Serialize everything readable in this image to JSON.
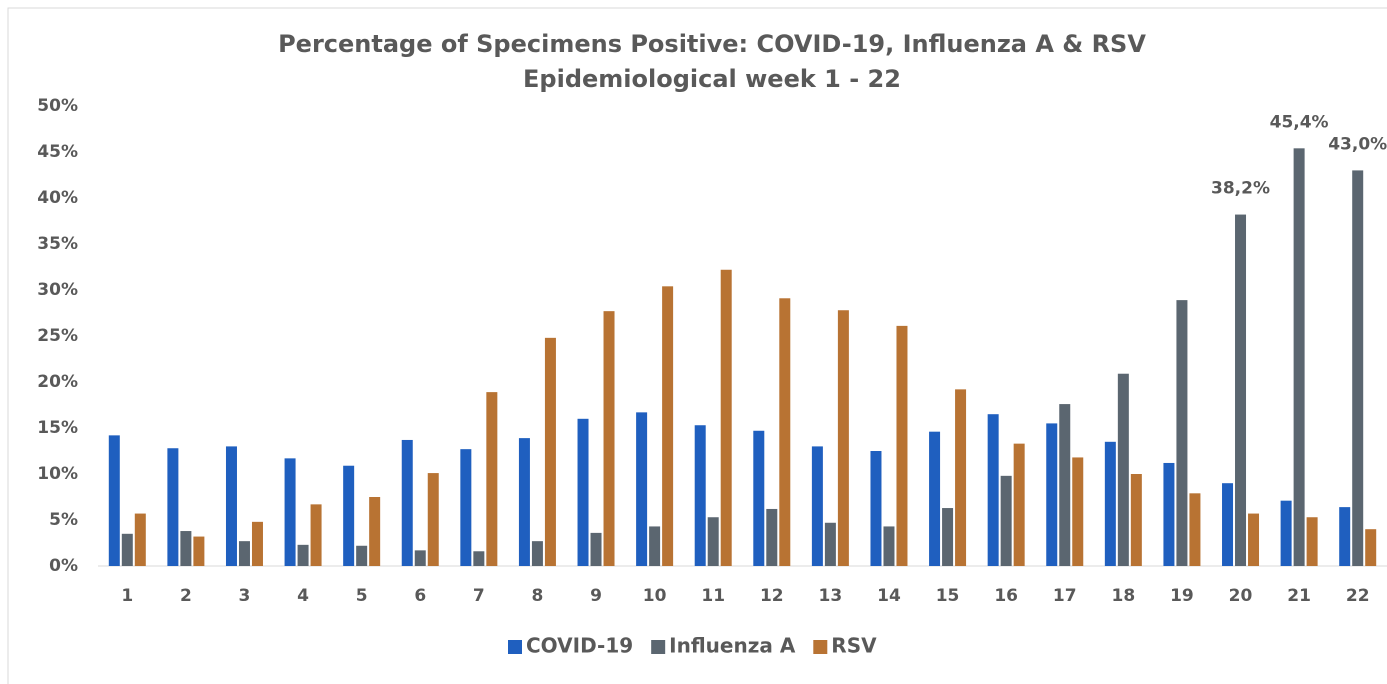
{
  "chart_data": {
    "type": "bar",
    "title": "Percentage of Specimens Positive: COVID-19, Influenza A & RSV",
    "subtitle": "Epidemiological week 1 - 22",
    "categories": [
      "1",
      "2",
      "3",
      "4",
      "5",
      "6",
      "7",
      "8",
      "9",
      "10",
      "11",
      "12",
      "13",
      "14",
      "15",
      "16",
      "17",
      "18",
      "19",
      "20",
      "21",
      "22"
    ],
    "series": [
      {
        "name": "COVID-19",
        "color": "#1f5fbf",
        "values": [
          14.2,
          12.8,
          13.0,
          11.7,
          10.9,
          13.7,
          12.7,
          13.9,
          16.0,
          16.7,
          15.3,
          14.7,
          13.0,
          12.5,
          14.6,
          16.5,
          15.5,
          13.5,
          11.2,
          9.0,
          7.1,
          6.4
        ]
      },
      {
        "name": "Influenza A",
        "color": "#5b6670",
        "values": [
          3.5,
          3.8,
          2.7,
          2.3,
          2.2,
          1.7,
          1.6,
          2.7,
          3.6,
          4.3,
          5.3,
          6.2,
          4.7,
          4.3,
          6.3,
          9.8,
          17.6,
          20.9,
          28.9,
          38.2,
          45.4,
          43.0
        ],
        "value_labels": [
          null,
          null,
          null,
          null,
          null,
          null,
          null,
          null,
          null,
          null,
          null,
          null,
          null,
          null,
          null,
          null,
          null,
          null,
          null,
          "38,2%",
          "45,4%",
          "43,0%"
        ]
      },
      {
        "name": "RSV",
        "color": "#b87333",
        "values": [
          5.7,
          3.2,
          4.8,
          6.7,
          7.5,
          10.1,
          18.9,
          24.8,
          27.7,
          30.4,
          32.2,
          29.1,
          27.8,
          26.1,
          19.2,
          13.3,
          11.8,
          10.0,
          7.9,
          5.7,
          5.3,
          4.0
        ]
      }
    ],
    "ylim": [
      0,
      50
    ],
    "yticks": [
      {
        "value": 0,
        "label": "0%"
      },
      {
        "value": 5,
        "label": "5%"
      },
      {
        "value": 10,
        "label": "10%"
      },
      {
        "value": 15,
        "label": "15%"
      },
      {
        "value": 20,
        "label": "20%"
      },
      {
        "value": 25,
        "label": "25%"
      },
      {
        "value": 30,
        "label": "30%"
      },
      {
        "value": 35,
        "label": "35%"
      },
      {
        "value": 40,
        "label": "40%"
      },
      {
        "value": 45,
        "label": "45%"
      },
      {
        "value": 50,
        "label": "50%"
      }
    ],
    "legend": "bottom"
  }
}
